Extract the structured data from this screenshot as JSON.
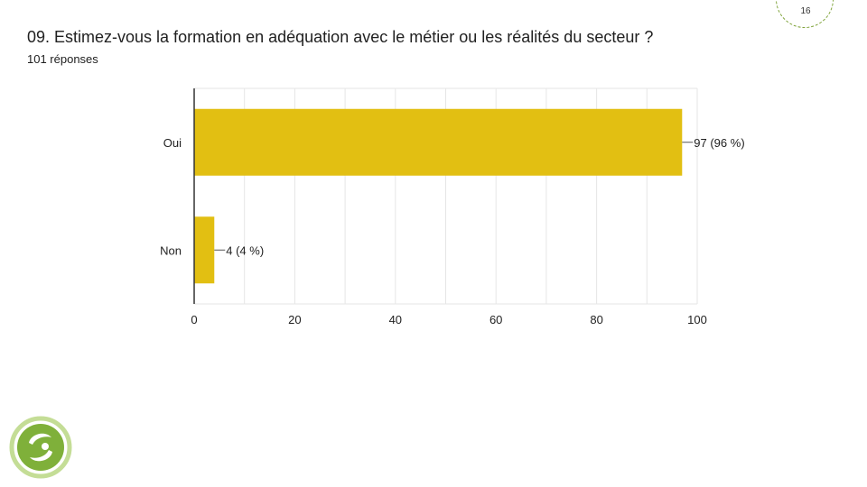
{
  "question": "09. Estimez-vous la formation en adéquation avec le métier ou les réalités du secteur ?",
  "responses": "101 réponses",
  "page_number": "16",
  "colors": {
    "bar": "#e2bf12",
    "grid": "#e6e6e6",
    "axis": "#333333",
    "text": "#212121",
    "logo_green": "#7fb03a",
    "logo_light": "#c4dd96"
  },
  "icons": {
    "badge": "page-badge-circle",
    "logo": "organization-logo"
  },
  "chart_data": {
    "type": "bar",
    "orientation": "horizontal",
    "categories": [
      "Oui",
      "Non"
    ],
    "values": [
      97,
      4
    ],
    "data_labels": [
      "97 (96 %)",
      "4 (4 %)"
    ],
    "xlim": [
      0,
      100
    ],
    "x_ticks": [
      0,
      20,
      40,
      60,
      80,
      100
    ],
    "grid": true,
    "legend": "none"
  }
}
